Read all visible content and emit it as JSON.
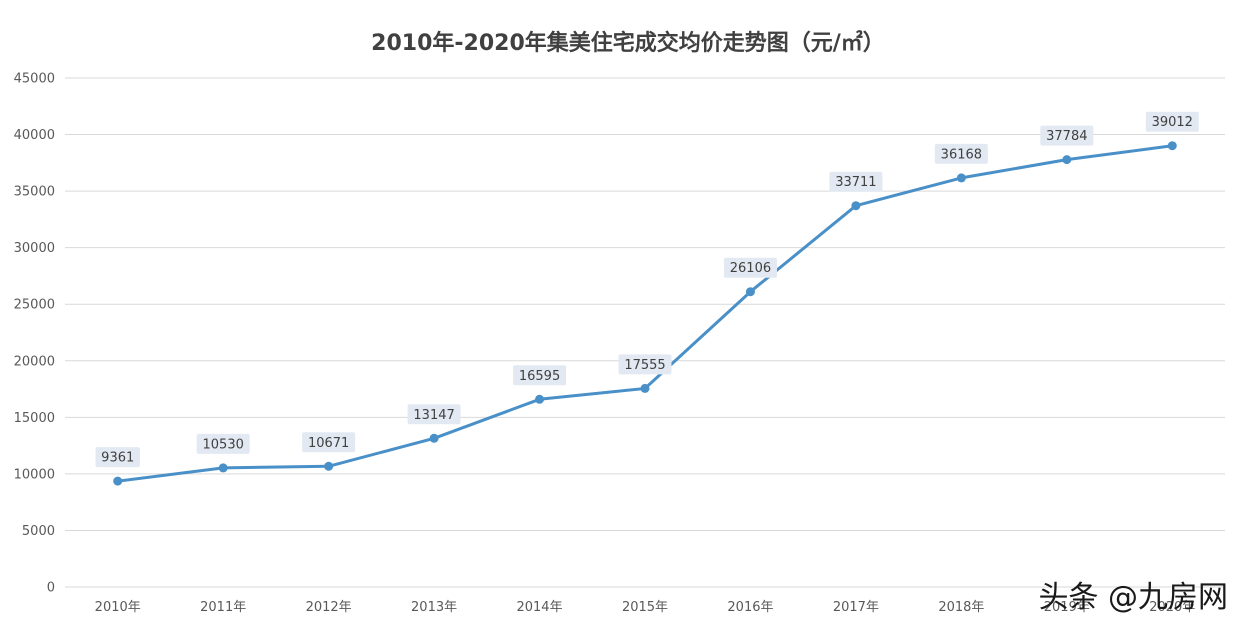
{
  "chart_data": {
    "type": "line",
    "title": "2010年-2020年集美住宅成交均价走势图（元/㎡）",
    "xlabel": "",
    "ylabel": "",
    "categories": [
      "2010年",
      "2011年",
      "2012年",
      "2013年",
      "2014年",
      "2015年",
      "2016年",
      "2017年",
      "2018年",
      "2019年",
      "2020年"
    ],
    "series": [
      {
        "values": [
          9361,
          10530,
          10671,
          13147,
          16595,
          17555,
          26106,
          33711,
          36168,
          37784,
          39012
        ],
        "color": "#4a90c8"
      }
    ],
    "yticks": [
      0,
      5000,
      10000,
      15000,
      20000,
      25000,
      30000,
      35000,
      40000,
      45000
    ],
    "ylim": [
      0,
      45000
    ],
    "grid": true,
    "data_labels": true,
    "legend": "none"
  },
  "watermark": "头条 @九房网"
}
